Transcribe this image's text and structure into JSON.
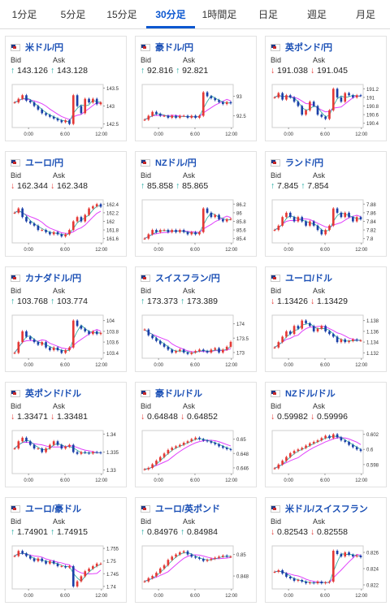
{
  "tabs": [
    {
      "label": "1分足",
      "active": false
    },
    {
      "label": "5分足",
      "active": false
    },
    {
      "label": "15分足",
      "active": false
    },
    {
      "label": "30分足",
      "active": true
    },
    {
      "label": "1時間足",
      "active": false
    },
    {
      "label": "日足",
      "active": false
    },
    {
      "label": "週足",
      "active": false
    },
    {
      "label": "月足",
      "active": false
    }
  ],
  "bid_label": "Bid",
  "ask_label": "Ask",
  "x_ticks": [
    "0:00",
    "6:00",
    "12:00"
  ],
  "colors": {
    "up": "#e53935",
    "down": "#1a3fa8",
    "ma": "#e040fb",
    "ma2": "#26a69a",
    "arrow_up": "#1aa7a0",
    "arrow_down": "#e53935",
    "title": "#1a4fb5"
  },
  "cards": [
    {
      "title": "米ドル/円",
      "flag": "us-jp",
      "dir": "up",
      "bid": "143.126",
      "ask": "143.128",
      "y_ticks": [
        "143.5",
        "143",
        "142.5"
      ],
      "ylim": [
        142.4,
        143.6
      ],
      "series": [
        143.1,
        143.2,
        143.3,
        143.15,
        143.1,
        143.0,
        142.9,
        142.8,
        142.75,
        142.7,
        142.65,
        142.6,
        142.55,
        142.6,
        142.5,
        143.3,
        143.0,
        142.8,
        143.2,
        143.1,
        143.2,
        143.05,
        143.1
      ]
    },
    {
      "title": "豪ドル/円",
      "flag": "au-jp",
      "dir": "up",
      "bid": "92.816",
      "ask": "92.821",
      "y_ticks": [
        "93",
        "92.5"
      ],
      "ylim": [
        92.2,
        93.3
      ],
      "series": [
        92.4,
        92.5,
        92.6,
        92.55,
        92.5,
        92.5,
        92.45,
        92.5,
        92.45,
        92.5,
        92.5,
        92.45,
        92.5,
        92.45,
        92.5,
        93.1,
        93.0,
        92.95,
        92.9,
        92.85,
        92.8,
        92.85,
        92.82
      ]
    },
    {
      "title": "英ポンド/円",
      "flag": "gb-jp",
      "dir": "down",
      "bid": "191.038",
      "ask": "191.045",
      "y_ticks": [
        "191.2",
        "191",
        "190.8",
        "190.6",
        "190.4"
      ],
      "ylim": [
        190.3,
        191.3
      ],
      "series": [
        191.0,
        191.1,
        190.95,
        191.05,
        191.0,
        190.9,
        190.8,
        190.6,
        190.7,
        190.9,
        190.8,
        190.6,
        190.55,
        190.5,
        190.7,
        191.2,
        191.0,
        190.9,
        191.1,
        191.05,
        191.0,
        191.05,
        191.04
      ]
    },
    {
      "title": "ユーロ/円",
      "flag": "eu-jp",
      "dir": "down",
      "bid": "162.344",
      "ask": "162.348",
      "y_ticks": [
        "162.4",
        "162.2",
        "162",
        "161.8",
        "161.6"
      ],
      "ylim": [
        161.5,
        162.5
      ],
      "series": [
        162.2,
        162.3,
        162.1,
        162.0,
        161.95,
        161.9,
        161.8,
        161.8,
        161.75,
        161.7,
        161.75,
        161.7,
        161.65,
        161.7,
        161.8,
        162.0,
        162.1,
        162.0,
        162.15,
        162.3,
        162.35,
        162.4,
        162.34
      ]
    },
    {
      "title": "NZドル/円",
      "flag": "nz-jp",
      "dir": "up",
      "bid": "85.858",
      "ask": "85.865",
      "y_ticks": [
        "86.2",
        "86",
        "85.8",
        "85.6",
        "85.4"
      ],
      "ylim": [
        85.3,
        86.3
      ],
      "series": [
        85.4,
        85.5,
        85.6,
        85.55,
        85.6,
        85.6,
        85.55,
        85.6,
        85.55,
        85.6,
        85.55,
        85.5,
        85.55,
        85.5,
        85.55,
        86.1,
        86.0,
        85.9,
        85.95,
        85.85,
        85.8,
        85.85,
        85.86
      ]
    },
    {
      "title": "ランド/円",
      "flag": "za-jp",
      "dir": "up",
      "bid": "7.845",
      "ask": "7.854",
      "y_ticks": [
        "7.88",
        "7.86",
        "7.84",
        "7.82",
        "7.8"
      ],
      "ylim": [
        7.79,
        7.89
      ],
      "series": [
        7.82,
        7.83,
        7.85,
        7.86,
        7.85,
        7.84,
        7.85,
        7.84,
        7.83,
        7.84,
        7.83,
        7.82,
        7.81,
        7.82,
        7.83,
        7.87,
        7.86,
        7.85,
        7.86,
        7.85,
        7.84,
        7.85,
        7.845
      ]
    },
    {
      "title": "カナダドル/円",
      "flag": "ca-jp",
      "dir": "up",
      "bid": "103.768",
      "ask": "103.774",
      "y_ticks": [
        "104",
        "103.8",
        "103.6",
        "103.4"
      ],
      "ylim": [
        103.3,
        104.1
      ],
      "series": [
        103.4,
        103.6,
        103.8,
        103.7,
        103.65,
        103.6,
        103.55,
        103.6,
        103.5,
        103.45,
        103.5,
        103.45,
        103.4,
        103.45,
        103.5,
        104.0,
        103.9,
        103.85,
        103.8,
        103.75,
        103.8,
        103.75,
        103.77
      ]
    },
    {
      "title": "スイスフラン/円",
      "flag": "ch-jp",
      "dir": "up",
      "bid": "173.373",
      "ask": "173.389",
      "y_ticks": [
        "174",
        "173.5",
        "173"
      ],
      "ylim": [
        172.8,
        174.3
      ],
      "series": [
        173.8,
        173.6,
        173.5,
        173.4,
        173.3,
        173.2,
        173.1,
        173.0,
        173.05,
        173.1,
        173.0,
        172.95,
        173.0,
        173.05,
        173.1,
        173.05,
        173.0,
        173.1,
        173.15,
        173.0,
        173.1,
        173.2,
        173.37
      ]
    },
    {
      "title": "ユーロ/ドル",
      "flag": "eu-us",
      "dir": "down",
      "bid": "1.13426",
      "ask": "1.13429",
      "y_ticks": [
        "1.138",
        "1.136",
        "1.134",
        "1.132"
      ],
      "ylim": [
        1.131,
        1.139
      ],
      "series": [
        1.133,
        1.134,
        1.135,
        1.136,
        1.1355,
        1.137,
        1.1365,
        1.138,
        1.1375,
        1.137,
        1.136,
        1.1365,
        1.137,
        1.136,
        1.1355,
        1.135,
        1.134,
        1.1345,
        1.134,
        1.1342,
        1.1345,
        1.1343,
        1.1343
      ]
    },
    {
      "title": "英ポンド/ドル",
      "flag": "gb-us",
      "dir": "down",
      "bid": "1.33471",
      "ask": "1.33481",
      "y_ticks": [
        "1.34",
        "1.335",
        "1.33"
      ],
      "ylim": [
        1.329,
        1.341
      ],
      "series": [
        1.336,
        1.338,
        1.339,
        1.338,
        1.337,
        1.336,
        1.336,
        1.335,
        1.336,
        1.337,
        1.338,
        1.337,
        1.336,
        1.3365,
        1.337,
        1.335,
        1.3345,
        1.335,
        1.3348,
        1.3346,
        1.335,
        1.3349,
        1.3347
      ]
    },
    {
      "title": "豪ドル/ドル",
      "flag": "au-us",
      "dir": "down",
      "bid": "0.64848",
      "ask": "0.64852",
      "y_ticks": [
        "0.65",
        "0.648",
        "0.646"
      ],
      "ylim": [
        0.6452,
        0.6512
      ],
      "series": [
        0.6458,
        0.646,
        0.6465,
        0.647,
        0.6475,
        0.648,
        0.6485,
        0.6488,
        0.649,
        0.6492,
        0.6495,
        0.6497,
        0.65,
        0.6502,
        0.65,
        0.6498,
        0.6497,
        0.6495,
        0.6493,
        0.649,
        0.6488,
        0.6486,
        0.6485
      ]
    },
    {
      "title": "NZドル/ドル",
      "flag": "nz-us",
      "dir": "down",
      "bid": "0.59982",
      "ask": "0.59996",
      "y_ticks": [
        "0.602",
        "0.6",
        "0.598"
      ],
      "ylim": [
        0.5968,
        0.6025
      ],
      "series": [
        0.5975,
        0.598,
        0.5985,
        0.599,
        0.5995,
        0.5998,
        0.6,
        0.6002,
        0.6005,
        0.6008,
        0.601,
        0.6012,
        0.6015,
        0.6018,
        0.6015,
        0.602,
        0.6016,
        0.6012,
        0.601,
        0.6006,
        0.6003,
        0.6,
        0.5998
      ]
    },
    {
      "title": "ユーロ/豪ドル",
      "flag": "eu-au",
      "dir": "up",
      "bid": "1.74901",
      "ask": "1.74915",
      "y_ticks": [
        "1.755",
        "1.75",
        "1.745",
        "1.74"
      ],
      "ylim": [
        1.739,
        1.756
      ],
      "series": [
        1.752,
        1.754,
        1.753,
        1.752,
        1.751,
        1.75,
        1.751,
        1.75,
        1.749,
        1.75,
        1.749,
        1.748,
        1.748,
        1.7475,
        1.748,
        1.74,
        1.742,
        1.744,
        1.746,
        1.747,
        1.748,
        1.749,
        1.749
      ]
    },
    {
      "title": "ユーロ/英ポンド",
      "flag": "eu-gb",
      "dir": "up",
      "bid": "0.84976",
      "ask": "0.84984",
      "y_ticks": [
        "0.85",
        "0.848"
      ],
      "ylim": [
        0.8468,
        0.8508
      ],
      "series": [
        0.8475,
        0.8478,
        0.848,
        0.8483,
        0.8487,
        0.849,
        0.8495,
        0.8498,
        0.85,
        0.8502,
        0.8503,
        0.85,
        0.8498,
        0.8497,
        0.8496,
        0.8494,
        0.8495,
        0.8496,
        0.8497,
        0.8498,
        0.8499,
        0.8498,
        0.8498
      ]
    },
    {
      "title": "米ドル/スイスフラン",
      "flag": "us-ch",
      "dir": "down",
      "bid": "0.82543",
      "ask": "0.82558",
      "y_ticks": [
        "0.826",
        "0.824",
        "0.822"
      ],
      "ylim": [
        0.8215,
        0.8268
      ],
      "series": [
        0.8236,
        0.8238,
        0.8234,
        0.823,
        0.8228,
        0.8225,
        0.8226,
        0.8224,
        0.8222,
        0.8223,
        0.8222,
        0.8224,
        0.8222,
        0.8223,
        0.8224,
        0.8262,
        0.8258,
        0.8255,
        0.826,
        0.8257,
        0.8255,
        0.8256,
        0.8254
      ]
    }
  ]
}
